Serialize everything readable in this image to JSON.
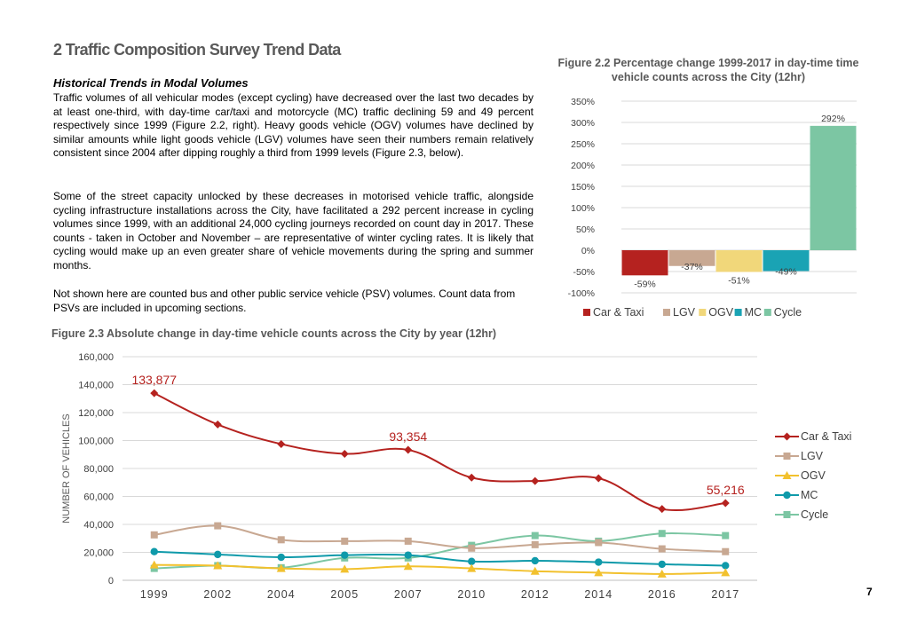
{
  "section_title": "2 Traffic Composition Survey Trend Data",
  "subheading": "Historical Trends in Modal Volumes",
  "paragraphs": [
    "Traffic volumes of all vehicular modes (except cycling) have decreased over the last two decades by at least one-third, with day-time car/taxi and motorcycle (MC) traffic declining 59 and 49 percent respectively since 1999 (Figure 2.2, right). Heavy goods vehicle (OGV) volumes have declined by similar amounts while light goods vehicle (LGV) volumes have seen their numbers remain relatively consistent since 2004 after dipping roughly a third from 1999 levels (Figure 2.3, below).",
    "Some of the street capacity unlocked by these decreases in motorised vehicle traffic, alongside cycling infrastructure installations across the City, have facilitated a 292 percent increase in cycling volumes since 1999, with an additional 24,000 cycling journeys recorded on count day in 2017. These counts - taken in October and November – are representative of winter cycling rates. It is likely that cycling would make up an even greater share of vehicle movements during the spring and summer months.",
    "Not shown here are counted bus and other public service vehicle (PSV) volumes. Count data from PSVs are included in upcoming sections."
  ],
  "page_number": "7",
  "chart_data": [
    {
      "type": "bar",
      "title": "Figure 2.2 Percentage change 1999-2017 in day-time time vehicle counts across the City (12hr)",
      "categories": [
        "Car & Taxi",
        "LGV",
        "OGV",
        "MC",
        "Cycle"
      ],
      "values": [
        -59,
        -37,
        -51,
        -49,
        292
      ],
      "data_labels": [
        "-59%",
        "-37%",
        "-51%",
        "-49%",
        "292%"
      ],
      "colors": [
        "#b5221f",
        "#c8a892",
        "#f1d77a",
        "#1aa3b4",
        "#7cc6a3"
      ],
      "yticks": [
        "350%",
        "300%",
        "250%",
        "200%",
        "150%",
        "100%",
        "50%",
        "0%",
        "-50%",
        "-100%"
      ],
      "ylim": [
        -100,
        350
      ],
      "grid": true,
      "legend": "bottom"
    },
    {
      "type": "line",
      "title": "Figure 2.3 Absolute change in day-time vehicle counts across the City by year (12hr)",
      "ylabel": "NUMBER OF VEHICLES",
      "xlabel": "",
      "categories": [
        "1999",
        "2002",
        "2004",
        "2005",
        "2007",
        "2010",
        "2012",
        "2014",
        "2016",
        "2017"
      ],
      "yticks": [
        "160,000",
        "140,000",
        "120,000",
        "100,000",
        "80,000",
        "60,000",
        "40,000",
        "20,000",
        "0"
      ],
      "ylim": [
        0,
        160000
      ],
      "grid": true,
      "legend": "right",
      "series": [
        {
          "name": "Car & Taxi",
          "color": "#b5221f",
          "marker": "diamond",
          "values": [
            133877,
            111500,
            97500,
            90500,
            93354,
            73500,
            71000,
            73000,
            51000,
            55216
          ]
        },
        {
          "name": "LGV",
          "color": "#c8a892",
          "marker": "square",
          "values": [
            32500,
            39000,
            29000,
            28000,
            28000,
            23000,
            25500,
            27000,
            22500,
            20500
          ]
        },
        {
          "name": "OGV",
          "color": "#f2c12e",
          "marker": "triangle",
          "values": [
            11000,
            10500,
            8500,
            8000,
            10000,
            8500,
            6500,
            5500,
            4500,
            5500
          ]
        },
        {
          "name": "MC",
          "color": "#0f9aaa",
          "marker": "circle",
          "values": [
            20500,
            18500,
            16500,
            18000,
            18000,
            13500,
            14000,
            13000,
            11500,
            10500
          ]
        },
        {
          "name": "Cycle",
          "color": "#7cc6a3",
          "marker": "square",
          "values": [
            8500,
            10500,
            9000,
            16000,
            16000,
            25000,
            32000,
            28000,
            33500,
            32000
          ]
        }
      ],
      "data_labels": [
        {
          "text": "133,877",
          "series": 0,
          "index": 0
        },
        {
          "text": "93,354",
          "series": 0,
          "index": 4
        },
        {
          "text": "55,216",
          "series": 0,
          "index": 9
        }
      ]
    }
  ]
}
